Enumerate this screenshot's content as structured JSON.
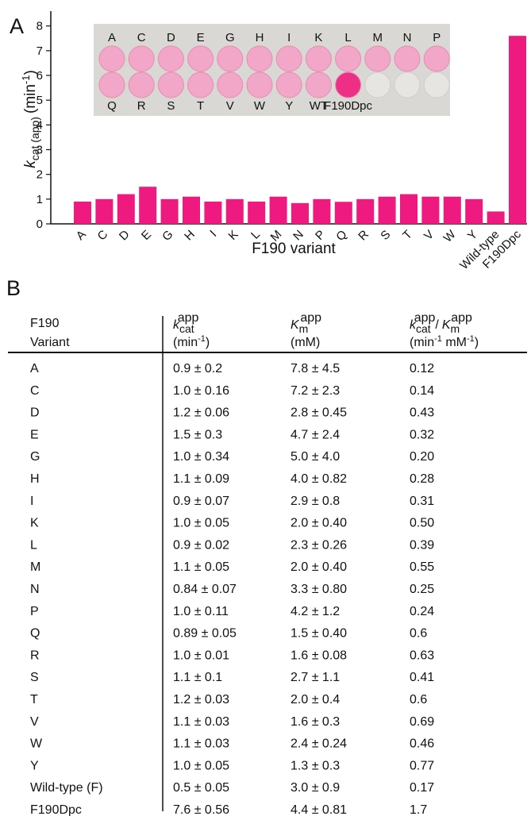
{
  "panel_labels": [
    "A",
    "B"
  ],
  "chart_data": {
    "type": "bar",
    "categories": [
      "A",
      "C",
      "D",
      "E",
      "G",
      "H",
      "I",
      "K",
      "L",
      "M",
      "N",
      "P",
      "Q",
      "R",
      "S",
      "T",
      "V",
      "W",
      "Y",
      "Wild-type",
      "F190Dpc"
    ],
    "values": [
      0.9,
      1.0,
      1.2,
      1.5,
      1.0,
      1.1,
      0.9,
      1.0,
      0.9,
      1.1,
      0.84,
      1.0,
      0.89,
      1.0,
      1.1,
      1.2,
      1.1,
      1.1,
      1.0,
      0.5,
      7.6
    ],
    "color": "#ef1a80",
    "ylim": [
      0,
      8.6
    ],
    "yticks": [
      0,
      1,
      2,
      3,
      4,
      5,
      6,
      7,
      8
    ],
    "xlabel": "F190 variant",
    "ylabel": {
      "symbol": "k",
      "subscript": "cat (app)",
      "unit": "(min",
      "unit_superscript": "-1",
      "unit_close": ")"
    },
    "inset": {
      "top_labels": [
        "A",
        "C",
        "D",
        "E",
        "G",
        "H",
        "I",
        "K",
        "L",
        "M",
        "N",
        "P"
      ],
      "bottom_labels": [
        "Q",
        "R",
        "S",
        "T",
        "V",
        "W",
        "Y",
        "WT",
        "F190Dpc"
      ]
    }
  },
  "table": {
    "header": {
      "variant": [
        "F190",
        "Variant"
      ],
      "kcat": {
        "symbol": "k",
        "subscript": "cat",
        "superscript": "app",
        "unit": "(min",
        "unit_superscript": "-1",
        "unit_close": ")"
      },
      "km": {
        "symbol": "K",
        "subscript": "m",
        "superscript": "app",
        "unit": "(mM)"
      },
      "ratio": {
        "symbol": "k",
        "subscript": "cat",
        "superscript": "app",
        "slash": "/",
        "symbol2": "K",
        "subscript2": "m",
        "superscript2": "app",
        "unit": "(min",
        "unit_superscript": "-1",
        "unit_mid": " mM",
        "unit_superscript2": "-1",
        "unit_close": ")"
      }
    },
    "rows": [
      [
        "A",
        "0.9 ± 0.2",
        "7.8 ± 4.5",
        "0.12"
      ],
      [
        "C",
        "1.0 ± 0.16",
        "7.2 ± 2.3",
        "0.14"
      ],
      [
        "D",
        "1.2 ± 0.06",
        "2.8 ± 0.45",
        "0.43"
      ],
      [
        "E",
        "1.5 ± 0.3",
        "4.7 ± 2.4",
        "0.32"
      ],
      [
        "G",
        "1.0 ± 0.34",
        "5.0 ± 4.0",
        "0.20"
      ],
      [
        "H",
        "1.1 ± 0.09",
        "4.0 ± 0.82",
        "0.28"
      ],
      [
        "I",
        "0.9 ± 0.07",
        "2.9 ± 0.8",
        "0.31"
      ],
      [
        "K",
        "1.0 ± 0.05",
        "2.0 ± 0.40",
        "0.50"
      ],
      [
        "L",
        "0.9 ± 0.02",
        "2.3 ± 0.26",
        "0.39"
      ],
      [
        "M",
        "1.1 ± 0.05",
        "2.0 ± 0.40",
        "0.55"
      ],
      [
        "N",
        "0.84 ± 0.07",
        "3.3 ± 0.80",
        "0.25"
      ],
      [
        "P",
        "1.0 ± 0.11",
        "4.2 ± 1.2",
        "0.24"
      ],
      [
        "Q",
        "0.89 ± 0.05",
        "1.5  ± 0.40",
        "0.6"
      ],
      [
        "R",
        "1.0 ± 0.01",
        "1.6 ± 0.08",
        "0.63"
      ],
      [
        "S",
        "1.1 ± 0.1",
        "2.7 ± 1.1",
        "0.41"
      ],
      [
        "T",
        "1.2 ± 0.03",
        "2.0 ± 0.4",
        "0.6"
      ],
      [
        "V",
        "1.1 ± 0.03",
        "1.6 ± 0.3",
        "0.69"
      ],
      [
        "W",
        "1.1 ± 0.03",
        "2.4 ± 0.24",
        "0.46"
      ],
      [
        "Y",
        "1.0 ± 0.05",
        "1.3 ± 0.3",
        "0.77"
      ],
      [
        "Wild-type (F)",
        "0.5 ± 0.05",
        "3.0 ± 0.9",
        "0.17"
      ],
      [
        "F190Dpc",
        "7.6 ± 0.56",
        "4.4 ± 0.81",
        "1.7"
      ]
    ]
  }
}
